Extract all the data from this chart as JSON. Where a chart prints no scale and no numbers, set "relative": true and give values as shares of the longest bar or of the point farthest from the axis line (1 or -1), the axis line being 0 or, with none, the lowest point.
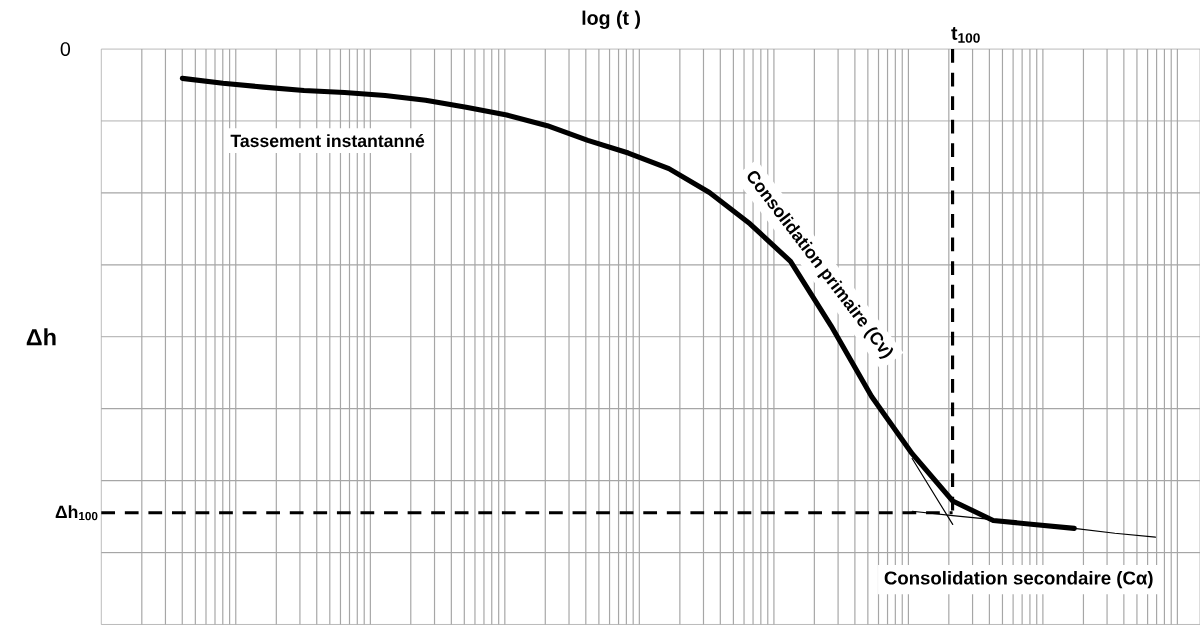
{
  "chart_data": {
    "type": "line",
    "xlabel": "log (t )",
    "ylabel": "Δh",
    "relative": true,
    "grid": true,
    "categories": [
      null,
      null,
      null,
      null,
      null,
      null,
      null,
      null,
      null,
      null,
      null,
      null,
      null,
      null,
      null,
      null,
      null,
      null,
      null,
      null,
      null,
      null,
      null,
      null,
      null,
      null,
      null,
      null
    ],
    "series": [
      {
        "color": "#000000",
        "values": [
          null,
          null,
          -0.06,
          -0.07,
          -0.078,
          -0.085,
          -0.089,
          -0.095,
          -0.105,
          -0.119,
          -0.135,
          -0.157,
          -0.187,
          -0.213,
          -0.245,
          -0.294,
          -0.358,
          -0.435,
          -0.567,
          -0.712,
          -0.829,
          -0.926,
          -0.966,
          -0.974,
          -0.982,
          null,
          null,
          null
        ]
      },
      {
        "color": "#000000",
        "values": [
          null,
          null,
          null,
          null,
          null,
          null,
          null,
          null,
          null,
          null,
          null,
          null,
          null,
          null,
          null,
          null,
          null,
          null,
          null,
          null,
          -0.839,
          -0.974,
          null,
          null,
          null,
          null,
          null,
          null
        ]
      },
      {
        "color": "#000000",
        "values": [
          null,
          null,
          null,
          null,
          null,
          null,
          null,
          null,
          null,
          null,
          null,
          null,
          null,
          null,
          null,
          null,
          null,
          null,
          null,
          null,
          -0.947,
          -0.956,
          -0.964,
          -0.974,
          -0.982,
          -0.992,
          -1.0,
          null
        ]
      }
    ],
    "ref_lines": [
      {
        "axis": "y",
        "value": -0.95,
        "label": "Δh$_{100}$",
        "line_style": "dashed",
        "color": "#000000"
      }
    ],
    "annotations": [
      "0",
      "t$_{100}$",
      "Tassement instantanné",
      "Consolidation primaire (Cv)",
      "Consolidation secondaire (Cα)"
    ]
  }
}
